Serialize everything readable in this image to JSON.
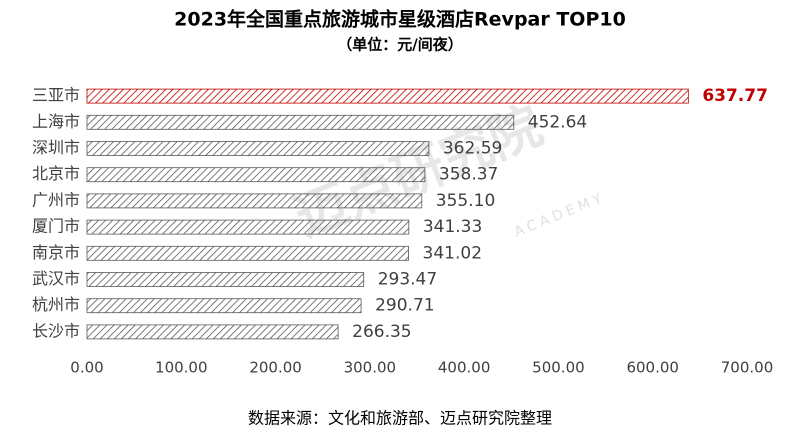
{
  "chart_data": {
    "type": "hbar",
    "title": "2023年全国重点旅游城市星级酒店Revpar TOP10",
    "subtitle": "（单位：元/间夜）",
    "categories": [
      "三亚市",
      "上海市",
      "深圳市",
      "北京市",
      "广州市",
      "厦门市",
      "南京市",
      "武汉市",
      "杭州市",
      "长沙市"
    ],
    "values": [
      637.77,
      452.64,
      362.59,
      358.37,
      355.1,
      341.33,
      341.02,
      293.47,
      290.71,
      266.35
    ],
    "value_labels": [
      "637.77",
      "452.64",
      "362.59",
      "358.37",
      "355.10",
      "341.33",
      "341.02",
      "293.47",
      "290.71",
      "266.35"
    ],
    "color": "#595959",
    "highlight_color": "#c00000",
    "xlim": [
      0,
      700
    ],
    "xticks": [
      {
        "value": 0,
        "label": "0.00"
      },
      {
        "value": 100,
        "label": "100.00"
      },
      {
        "value": 200,
        "label": "200.00"
      },
      {
        "value": 300,
        "label": "300.00"
      },
      {
        "value": 400,
        "label": "400.00"
      },
      {
        "value": 500,
        "label": "500.00"
      },
      {
        "value": 600,
        "label": "600.00"
      },
      {
        "value": 700,
        "label": "700.00"
      }
    ],
    "watermark": "迈点研究院",
    "watermark_sub": "ACADEMY",
    "source": "数据来源：文化和旅游部、迈点研究院整理"
  }
}
